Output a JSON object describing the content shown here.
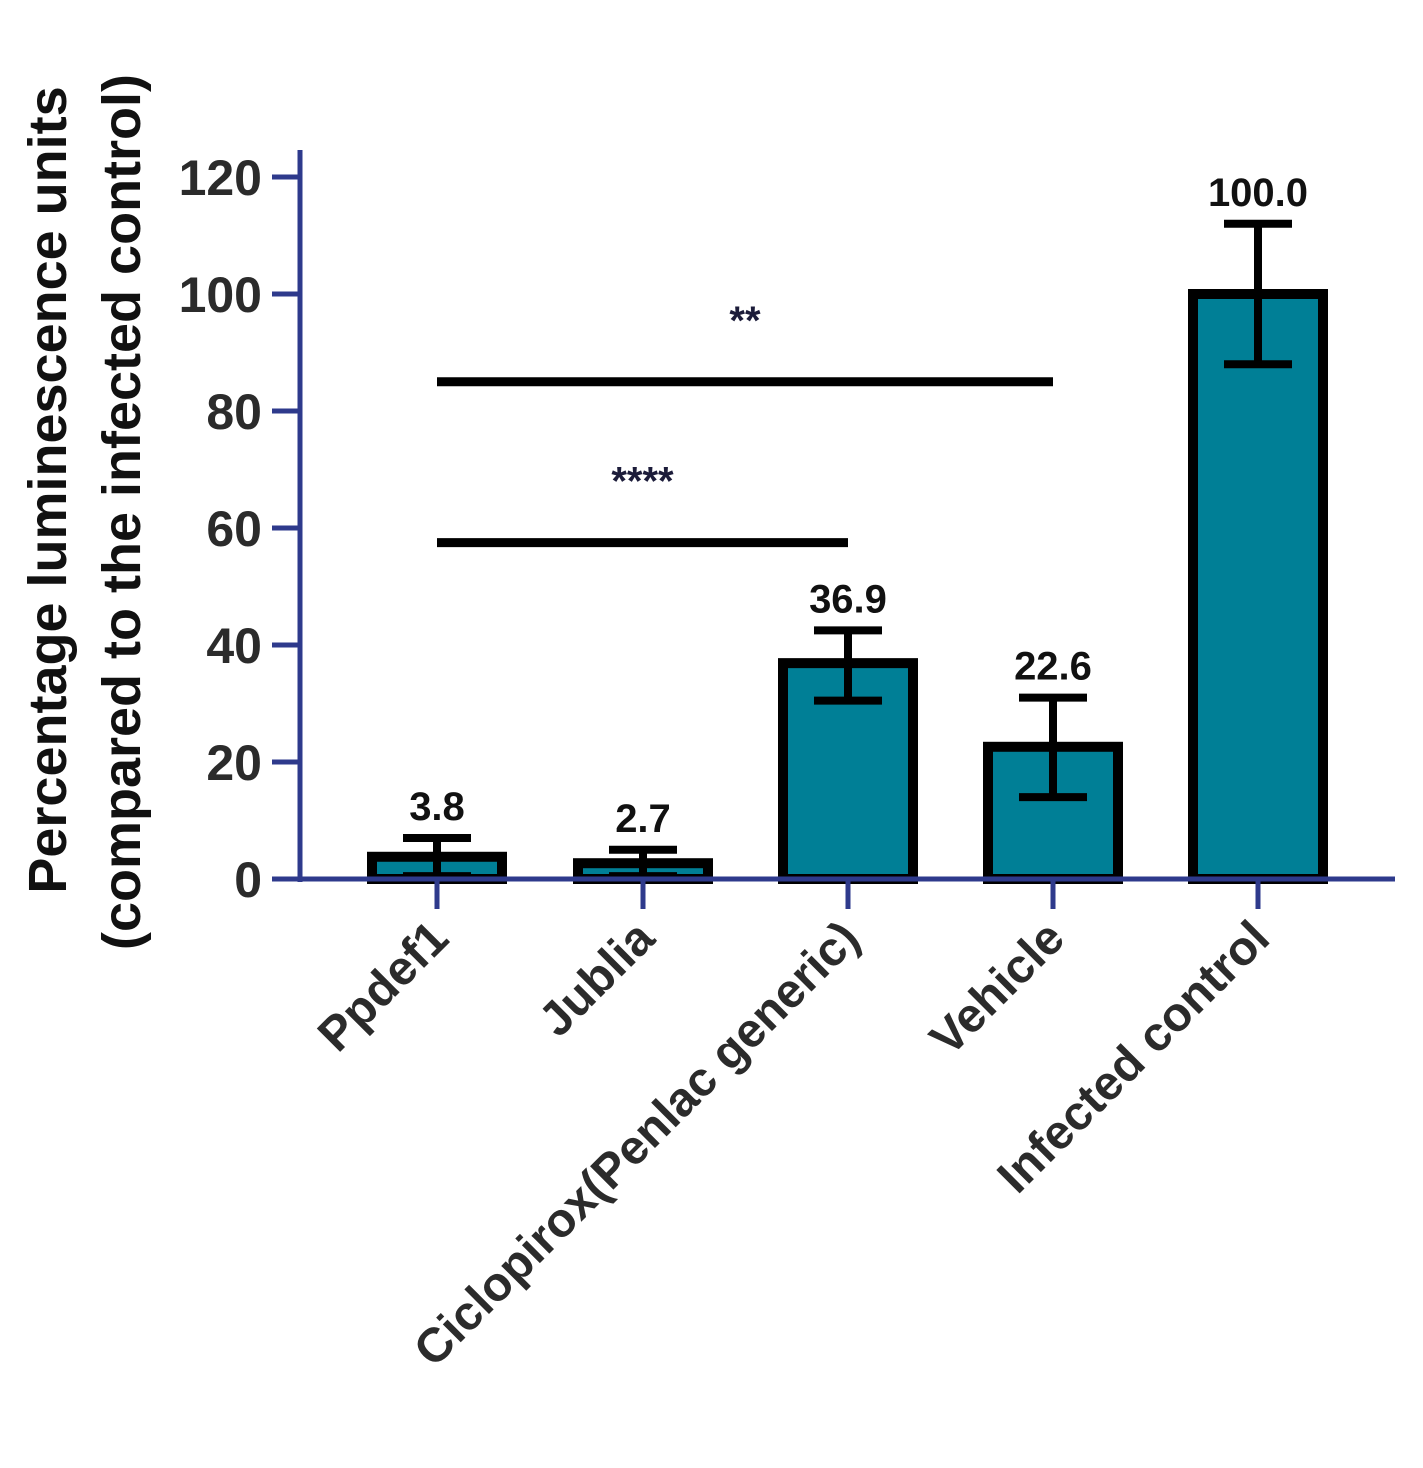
{
  "chart_data": {
    "type": "bar",
    "title": "",
    "xlabel": "",
    "ylabel_line1": "Percentage luminescence units",
    "ylabel_line2": "(compared to the infected control)",
    "categories": [
      "Ppdef1",
      "Jublia",
      "Ciclopirox(Penlac generic)",
      "Vehicle",
      "Infected control"
    ],
    "values": [
      3.8,
      2.7,
      36.9,
      22.6,
      100.0
    ],
    "value_labels": [
      "3.8",
      "2.7",
      "36.9",
      "22.6",
      "100.0"
    ],
    "error_low": [
      0.5,
      0.5,
      30.5,
      14.0,
      88.0
    ],
    "error_high": [
      7.0,
      5.0,
      42.5,
      31.0,
      112.0
    ],
    "ylim": [
      0,
      125
    ],
    "yticks": [
      0,
      20,
      40,
      60,
      80,
      100,
      120
    ],
    "ytick_labels": [
      "0",
      "20",
      "40",
      "60",
      "80",
      "100",
      "120"
    ],
    "significance": [
      {
        "from": 0,
        "to": 3,
        "y": 85,
        "label": "**"
      },
      {
        "from": 0,
        "to": 2,
        "y": 57.5,
        "label": "****"
      }
    ],
    "colors": {
      "bar_fill": "#007f96",
      "bar_edge": "#000000",
      "axis": "#2e3a8c",
      "bracket": "#000000"
    }
  }
}
